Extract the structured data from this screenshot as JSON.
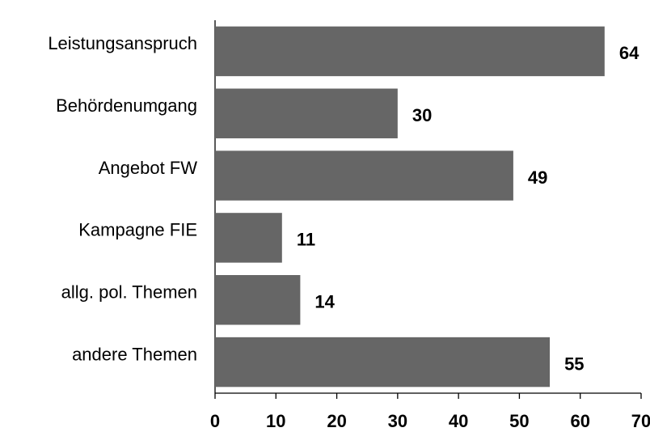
{
  "chart_data": {
    "type": "bar",
    "orientation": "horizontal",
    "categories": [
      "Leistungsanspruch",
      "Behördenumgang",
      "Angebot FW",
      "Kampagne FIE",
      "allg. pol. Themen",
      "andere Themen"
    ],
    "values": [
      64,
      30,
      49,
      11,
      14,
      55
    ],
    "color": "#666666",
    "xlim": [
      0,
      70
    ],
    "xticks": [
      0,
      10,
      20,
      30,
      40,
      50,
      60,
      70
    ]
  }
}
